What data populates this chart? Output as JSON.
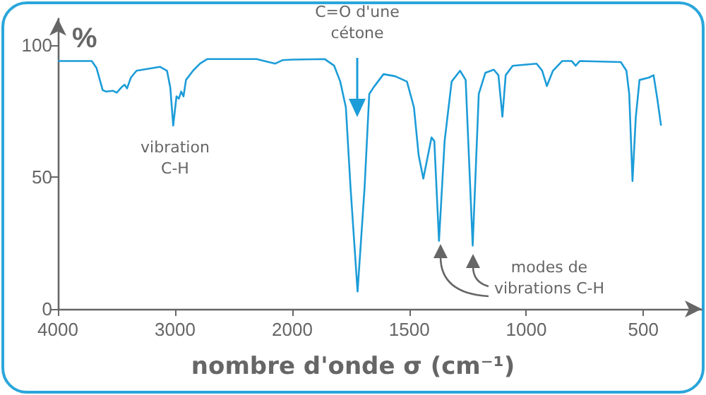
{
  "chart_data": [
    {
      "type": "line",
      "ylabel": "%",
      "xlim": [
        4000,
        2000
      ],
      "xticks": [
        4000,
        3000,
        2000
      ],
      "ylim": [
        0,
        110
      ],
      "yticks": [
        0,
        50,
        100
      ],
      "annotations": [
        "vibration C-H"
      ],
      "series": [
        {
          "color": "#1c9cd8",
          "x": [
            4000,
            3711,
            3670,
            3618,
            3590,
            3530,
            3498,
            3458,
            3430,
            3410,
            3377,
            3329,
            3129,
            3069,
            3041,
            3016,
            2988,
            2968,
            2948,
            2928,
            2907,
            2847,
            2787,
            2727,
            2486,
            2305,
            2145,
            2084,
            2000
          ],
          "values": [
            94,
            94,
            91.3,
            83,
            82.4,
            82.7,
            82,
            84,
            85,
            83.6,
            87.7,
            90.3,
            91.8,
            90.3,
            83.9,
            69.5,
            80.6,
            79.7,
            82.4,
            80.6,
            86.8,
            90.3,
            93,
            94.7,
            94.7,
            94.7,
            93,
            94.3,
            94.5
          ]
        }
      ]
    },
    {
      "type": "line",
      "xlabel": "nombre d'onde σ (cm⁻¹)",
      "xlim": [
        2000,
        250
      ],
      "xticks": [
        1500,
        1000,
        500
      ],
      "ylim": [
        0,
        100
      ],
      "yticks": [
        0,
        50,
        100
      ],
      "tick_labels": "x",
      "annotations": [
        "C=O d'une cétone",
        "modes de vibrations C-H"
      ],
      "series": [
        {
          "color": "#1c9cd8",
          "x": [
            2000,
            1861,
            1821,
            1795,
            1771,
            1751,
            1721,
            1691,
            1671,
            1651,
            1610,
            1560,
            1510,
            1480,
            1460,
            1440,
            1420,
            1405,
            1393,
            1373,
            1349,
            1319,
            1283,
            1259,
            1229,
            1203,
            1175,
            1139,
            1119,
            1102,
            1088,
            1058,
            956,
            932,
            912,
            886,
            846,
            806,
            789,
            771,
            596,
            572,
            560,
            546,
            532,
            516,
            476,
            456,
            440,
            424
          ],
          "values": [
            94.5,
            94.7,
            92.2,
            86.2,
            76.4,
            46,
            6.6,
            46,
            81.5,
            84.2,
            89,
            88.2,
            86.2,
            76.4,
            58.3,
            49.4,
            58.3,
            65,
            63.6,
            25.8,
            63.6,
            86.2,
            90.3,
            86.8,
            24,
            81.5,
            89.5,
            90.7,
            88.6,
            72.9,
            88.6,
            92.2,
            93,
            90.3,
            84.5,
            90.3,
            94,
            94,
            92.2,
            94,
            93.6,
            90.3,
            81.5,
            48.5,
            72.6,
            86.8,
            87.7,
            88.6,
            79.7,
            69.5
          ]
        }
      ]
    }
  ]
}
